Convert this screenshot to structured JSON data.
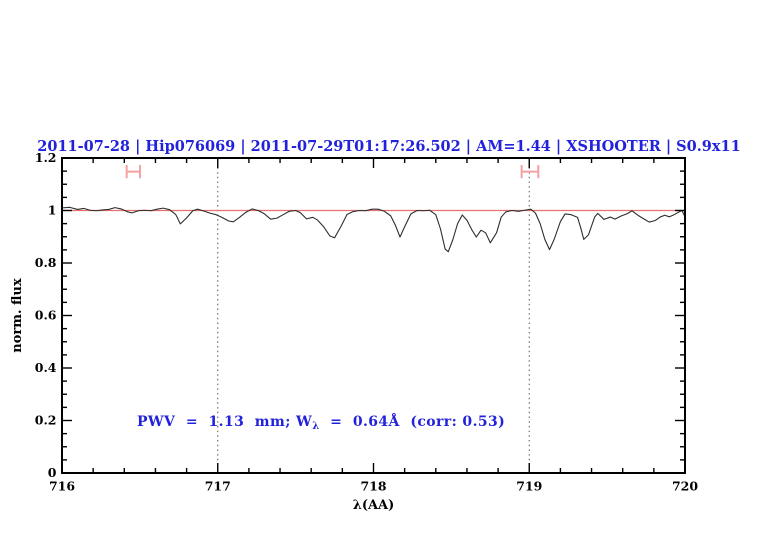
{
  "header": {
    "title": "2011-07-28 | Hip076069 | 2011-07-29T01:17:26.502 | AM=1.44 | XSHOOTER | S0.9x11",
    "title_color": "#2222dd"
  },
  "annotation": {
    "pre": "PWV  =  1.13  mm; W",
    "sub": "λ",
    "post": "  =  0.64Å  (corr: 0.53)",
    "color": "#2222dd"
  },
  "chart_data": {
    "type": "line",
    "title": "2011-07-28 | Hip076069 | 2011-07-29T01:17:26.502 | AM=1.44 | XSHOOTER | S0.9x11",
    "xlabel": "λ(AA)",
    "ylabel": "norm. flux",
    "xlim": [
      716,
      720
    ],
    "ylim": [
      0,
      1.2
    ],
    "grid": false,
    "x_major_ticks": [
      716,
      717,
      718,
      719,
      720
    ],
    "x_tick_labels": [
      "716",
      "717",
      "718",
      "719",
      "720"
    ],
    "x_minor_step": 0.2,
    "y_major_ticks": [
      0,
      0.2,
      0.4,
      0.6,
      0.8,
      1,
      1.2
    ],
    "y_tick_labels": [
      "0",
      "0.2",
      "0.4",
      "0.6",
      "0.8",
      "1",
      "1.2"
    ],
    "y_minor_step": 0.05,
    "vlines": {
      "x": [
        717,
        719
      ],
      "style": "dotted",
      "color": "#555555"
    },
    "hline": {
      "y": 1.0,
      "color": "#e87070"
    },
    "range_markers": {
      "color": "#f2a2a2",
      "items": [
        {
          "x_start": 716.415,
          "x_end": 716.501,
          "y": 1.148
        },
        {
          "x_start": 718.951,
          "x_end": 719.058,
          "y": 1.148
        }
      ]
    },
    "series": [
      {
        "name": "normalized-telluric-spectrum",
        "color": "#2e2e2e",
        "x": [
          716.0,
          716.05,
          716.1,
          716.14,
          716.18,
          716.22,
          716.26,
          716.3,
          716.34,
          716.38,
          716.42,
          716.45,
          716.49,
          716.53,
          716.57,
          716.61,
          716.65,
          716.69,
          716.73,
          716.76,
          716.8,
          716.84,
          716.87,
          716.91,
          716.95,
          716.99,
          717.03,
          717.07,
          717.1,
          717.14,
          717.18,
          717.22,
          717.26,
          717.3,
          717.34,
          717.38,
          717.42,
          717.46,
          717.5,
          717.53,
          717.57,
          717.61,
          717.64,
          717.68,
          717.72,
          717.75,
          717.79,
          717.83,
          717.87,
          717.91,
          717.95,
          717.99,
          718.03,
          718.07,
          718.11,
          718.14,
          718.17,
          718.2,
          718.24,
          718.28,
          718.32,
          718.36,
          718.4,
          718.43,
          718.46,
          718.48,
          718.51,
          718.54,
          718.57,
          718.6,
          718.63,
          718.66,
          718.69,
          718.72,
          718.75,
          718.79,
          718.82,
          718.85,
          718.89,
          718.93,
          718.97,
          719.01,
          719.04,
          719.07,
          719.1,
          719.13,
          719.16,
          719.2,
          719.23,
          719.27,
          719.31,
          719.33,
          719.35,
          719.38,
          719.42,
          719.44,
          719.48,
          719.52,
          719.55,
          719.59,
          719.63,
          719.66,
          719.7,
          719.73,
          719.77,
          719.81,
          719.84,
          719.87,
          719.9,
          719.93,
          719.96,
          719.98,
          720.0
        ],
        "y": [
          1.01,
          1.012,
          1.004,
          1.008,
          1.001,
          0.999,
          1.002,
          1.004,
          1.011,
          1.006,
          0.995,
          0.991,
          0.999,
          1.001,
          0.999,
          1.005,
          1.009,
          1.003,
          0.985,
          0.949,
          0.972,
          0.999,
          1.005,
          0.998,
          0.99,
          0.984,
          0.973,
          0.96,
          0.957,
          0.974,
          0.993,
          1.006,
          1.0,
          0.987,
          0.967,
          0.971,
          0.984,
          0.997,
          1.0,
          0.992,
          0.968,
          0.974,
          0.964,
          0.938,
          0.903,
          0.896,
          0.938,
          0.985,
          0.996,
          1.0,
          0.999,
          1.005,
          1.005,
          0.997,
          0.98,
          0.945,
          0.899,
          0.938,
          0.987,
          1.0,
          0.999,
          1.001,
          0.984,
          0.93,
          0.853,
          0.843,
          0.89,
          0.95,
          0.983,
          0.963,
          0.928,
          0.899,
          0.925,
          0.915,
          0.877,
          0.915,
          0.975,
          0.995,
          1.0,
          0.997,
          1.001,
          1.005,
          0.99,
          0.95,
          0.89,
          0.851,
          0.89,
          0.958,
          0.987,
          0.984,
          0.974,
          0.935,
          0.89,
          0.907,
          0.975,
          0.989,
          0.966,
          0.975,
          0.967,
          0.979,
          0.988,
          0.999,
          0.981,
          0.97,
          0.956,
          0.962,
          0.975,
          0.982,
          0.976,
          0.984,
          0.994,
          1.0,
          0.976
        ]
      }
    ]
  }
}
